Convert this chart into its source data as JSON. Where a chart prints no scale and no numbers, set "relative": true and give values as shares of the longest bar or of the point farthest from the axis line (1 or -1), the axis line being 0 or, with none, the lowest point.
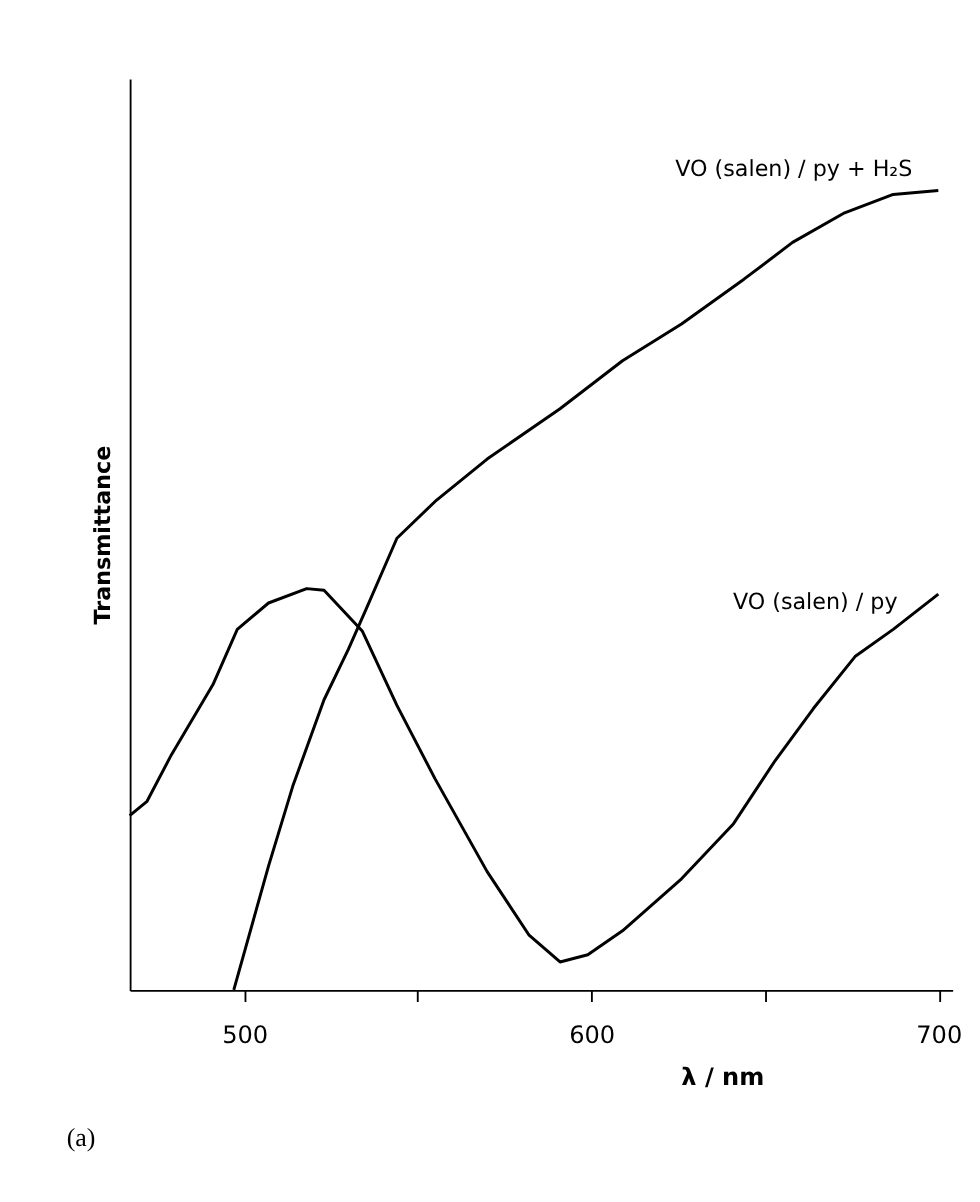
{
  "chart_data": {
    "type": "line",
    "relative": true,
    "xlabel": "λ / nm",
    "ylabel": "Transmittance",
    "xlim": [
      467,
      704
    ],
    "xticks": [
      500,
      {
        "value": 550,
        "label": null
      },
      600,
      {
        "value": 650,
        "label": null
      },
      700
    ],
    "series": [
      {
        "name": "VO (salen) / py",
        "color": "#000000",
        "x": [
          467,
          472,
          479,
          491,
          498,
          507,
          518,
          523,
          534,
          544,
          555,
          570,
          582,
          591,
          599,
          609,
          626,
          641,
          653,
          664,
          676,
          687,
          700
        ],
        "values": [
          0.218,
          0.236,
          0.294,
          0.382,
          0.451,
          0.484,
          0.502,
          0.5,
          0.449,
          0.356,
          0.264,
          0.148,
          0.069,
          0.035,
          0.044,
          0.074,
          0.139,
          0.208,
          0.287,
          0.352,
          0.417,
          0.451,
          0.495
        ]
      },
      {
        "name": "VO (salen) / py + H₂S",
        "color": "#000000",
        "x": [
          497,
          507,
          514,
          523,
          530,
          535,
          544,
          555,
          570,
          591,
          609,
          626,
          644,
          658,
          673,
          687,
          700
        ],
        "values": [
          0,
          0.155,
          0.255,
          0.363,
          0.426,
          0.475,
          0.565,
          0.611,
          0.664,
          0.727,
          0.787,
          0.833,
          0.889,
          0.935,
          0.972,
          0.995,
          1.0
        ]
      }
    ],
    "annotations": [
      "(a)"
    ],
    "grid": false,
    "marker": "none",
    "line_style": "solid"
  }
}
